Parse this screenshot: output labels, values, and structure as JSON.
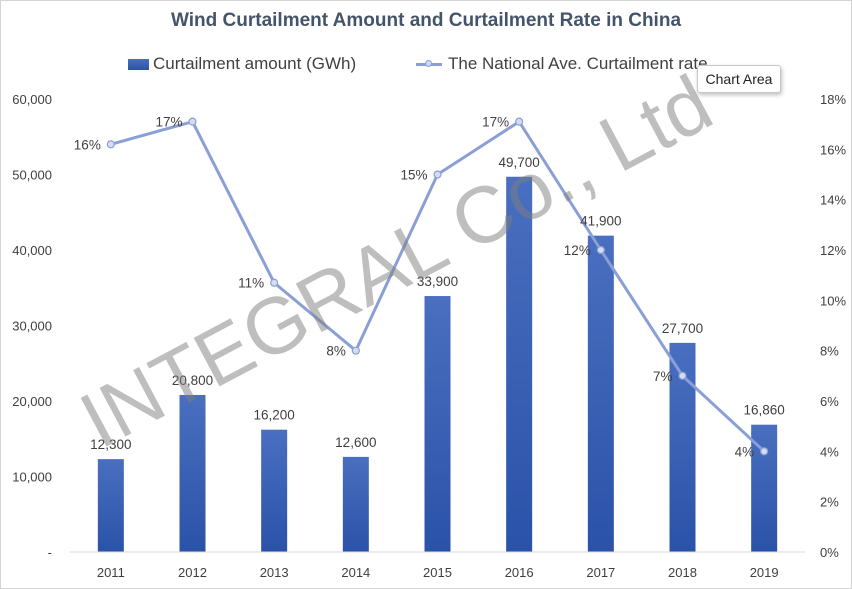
{
  "chart_data": {
    "type": "bar",
    "title": "Wind Curtailment Amount and Curtailment Rate in China",
    "categories": [
      "2011",
      "2012",
      "2013",
      "2014",
      "2015",
      "2016",
      "2017",
      "2018",
      "2019"
    ],
    "series": [
      {
        "name": "Curtailment amount (GWh)",
        "type": "bar",
        "axis": "left",
        "values": [
          12300,
          20800,
          16200,
          12600,
          33900,
          49700,
          41900,
          27700,
          16860
        ],
        "labels": [
          "12,300",
          "20,800",
          "16,200",
          "12,600",
          "33,900",
          "49,700",
          "41,900",
          "27,700",
          "16,860"
        ]
      },
      {
        "name": "The National Ave. Curtailment rate",
        "type": "line",
        "axis": "right",
        "values": [
          16.2,
          17.1,
          10.7,
          8.0,
          15.0,
          17.1,
          12.0,
          7.0,
          4.0
        ],
        "labels": [
          "16%",
          "17%",
          "11%",
          "8%",
          "15%",
          "17%",
          "12%",
          "7%",
          "4%"
        ]
      }
    ],
    "y_left": {
      "min": 0,
      "max": 60000,
      "ticks": [
        "-",
        "10,000",
        "20,000",
        "30,000",
        "40,000",
        "50,000",
        "60,000"
      ]
    },
    "y_right": {
      "min": 0,
      "max": 18,
      "ticks": [
        "0%",
        "2%",
        "4%",
        "6%",
        "8%",
        "10%",
        "12%",
        "14%",
        "16%",
        "18%"
      ]
    },
    "grid": false,
    "legend_position": "top",
    "colors": {
      "bar": "#3159b0",
      "line": "#8a9fd6",
      "title": "#44546a"
    }
  },
  "tooltip": "Chart Area",
  "watermark": "INTEGRAL Co., Ltd"
}
